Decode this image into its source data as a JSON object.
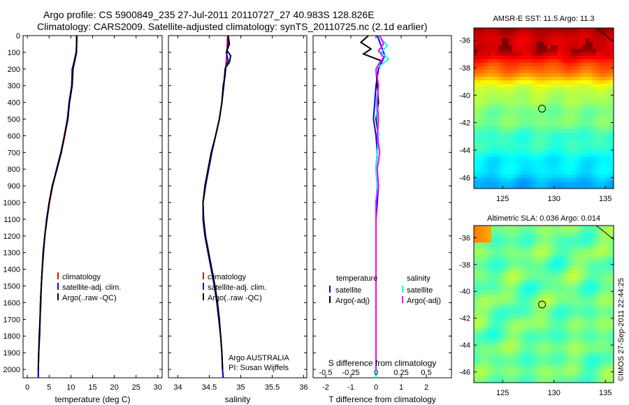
{
  "title": {
    "line1": "Argo profile: CS 5900849_235 27-Jul-2011 20110727_27 40.983S 128.826E",
    "line2": "Climatology: CARS2009. Satellite-adjusted climatology: synTS_20110725.nc (2.1d earlier)"
  },
  "colors": {
    "climatology": "#ff0000",
    "satellite": "#0000ff",
    "argo": "#000000",
    "salinity_satellite": "#00ffff",
    "salinity_argo": "#ff00ff"
  },
  "chart_data": [
    {
      "type": "line",
      "id": "temperature",
      "xlabel": "temperature (deg C)",
      "ylim": [
        2050,
        0
      ],
      "xlim": [
        -1,
        31
      ],
      "xticks": [
        "0",
        "5",
        "10",
        "15",
        "20",
        "25",
        "30"
      ],
      "yticks": [
        "0",
        "100",
        "200",
        "300",
        "400",
        "500",
        "600",
        "700",
        "800",
        "900",
        "1000",
        "1100",
        "1200",
        "1300",
        "1400",
        "1500",
        "1600",
        "1700",
        "1800",
        "1900",
        "2000"
      ],
      "legend": [
        "climatology",
        "satellite-adj. clim.",
        "Argo(..raw -QC)"
      ],
      "series": [
        {
          "name": "climatology",
          "color": "#ff0000",
          "points": [
            [
              11.4,
              0
            ],
            [
              11.3,
              100
            ],
            [
              10.8,
              160
            ],
            [
              10.4,
              200
            ],
            [
              10.2,
              300
            ],
            [
              9.6,
              400
            ],
            [
              9.3,
              500
            ],
            [
              8.6,
              600
            ],
            [
              7.8,
              700
            ],
            [
              6.8,
              800
            ],
            [
              5.8,
              900
            ],
            [
              5.1,
              1000
            ],
            [
              4.5,
              1100
            ],
            [
              4.0,
              1200
            ],
            [
              3.7,
              1300
            ],
            [
              3.4,
              1400
            ],
            [
              3.2,
              1500
            ],
            [
              3.1,
              1600
            ],
            [
              2.9,
              1700
            ],
            [
              2.8,
              1800
            ],
            [
              2.6,
              1900
            ],
            [
              2.5,
              2000
            ],
            [
              2.5,
              2050
            ]
          ]
        },
        {
          "name": "satellite-adj. clim.",
          "color": "#0000ff",
          "points": [
            [
              11.4,
              0
            ],
            [
              11.2,
              100
            ],
            [
              10.7,
              160
            ],
            [
              10.3,
              200
            ],
            [
              10.2,
              300
            ],
            [
              9.6,
              400
            ],
            [
              9.2,
              500
            ],
            [
              8.5,
              600
            ],
            [
              7.7,
              700
            ],
            [
              6.7,
              800
            ],
            [
              5.8,
              900
            ],
            [
              5.0,
              1000
            ],
            [
              4.4,
              1100
            ],
            [
              4.0,
              1200
            ],
            [
              3.6,
              1300
            ],
            [
              3.4,
              1400
            ],
            [
              3.2,
              1500
            ],
            [
              3.0,
              1600
            ],
            [
              2.9,
              1700
            ],
            [
              2.7,
              1800
            ],
            [
              2.6,
              1900
            ],
            [
              2.5,
              2000
            ],
            [
              2.5,
              2050
            ]
          ]
        },
        {
          "name": "Argo(..raw -QC)",
          "color": "#000000",
          "points": [
            [
              11.3,
              0
            ],
            [
              11.3,
              100
            ],
            [
              10.9,
              150
            ],
            [
              10.5,
              200
            ],
            [
              10.3,
              300
            ],
            [
              9.7,
              400
            ],
            [
              9.3,
              500
            ],
            [
              8.5,
              600
            ],
            [
              7.8,
              700
            ],
            [
              6.8,
              800
            ],
            [
              5.7,
              900
            ],
            [
              5.0,
              1000
            ],
            [
              4.5,
              1100
            ],
            [
              4.0,
              1200
            ],
            [
              3.7,
              1300
            ],
            [
              3.4,
              1400
            ],
            [
              3.2,
              1500
            ],
            [
              3.0,
              1600
            ],
            [
              2.9,
              1700
            ],
            [
              2.8,
              1800
            ],
            [
              2.6,
              1900
            ],
            [
              2.5,
              2000
            ]
          ]
        }
      ]
    },
    {
      "type": "line",
      "id": "salinity",
      "xlabel": "salinity",
      "ylim": [
        2050,
        0
      ],
      "xlim": [
        33.85,
        36.05
      ],
      "xticks": [
        "34",
        "34.5",
        "35",
        "35.5",
        "36"
      ],
      "legend": [
        "climatology",
        "satellite-adj. clim.",
        "Argo(..raw -QC)"
      ],
      "annotation": [
        "Argo AUSTRALIA",
        "PI: Susan Wijffels"
      ],
      "series": [
        {
          "name": "climatology",
          "color": "#ff0000",
          "points": [
            [
              34.79,
              0
            ],
            [
              34.78,
              100
            ],
            [
              34.76,
              200
            ],
            [
              34.73,
              300
            ],
            [
              34.7,
              400
            ],
            [
              34.66,
              500
            ],
            [
              34.6,
              600
            ],
            [
              34.54,
              700
            ],
            [
              34.49,
              800
            ],
            [
              34.44,
              900
            ],
            [
              34.4,
              1000
            ],
            [
              34.4,
              1100
            ],
            [
              34.43,
              1200
            ],
            [
              34.48,
              1300
            ],
            [
              34.53,
              1400
            ],
            [
              34.58,
              1500
            ],
            [
              34.62,
              1600
            ],
            [
              34.65,
              1700
            ],
            [
              34.68,
              1800
            ],
            [
              34.7,
              1900
            ],
            [
              34.71,
              2000
            ],
            [
              34.72,
              2050
            ]
          ]
        },
        {
          "name": "satellite-adj. clim.",
          "color": "#0000ff",
          "points": [
            [
              34.8,
              0
            ],
            [
              34.8,
              60
            ],
            [
              34.77,
              100
            ],
            [
              34.8,
              150
            ],
            [
              34.75,
              200
            ],
            [
              34.73,
              300
            ],
            [
              34.7,
              400
            ],
            [
              34.66,
              500
            ],
            [
              34.6,
              600
            ],
            [
              34.54,
              700
            ],
            [
              34.49,
              800
            ],
            [
              34.44,
              900
            ],
            [
              34.4,
              1000
            ],
            [
              34.4,
              1100
            ],
            [
              34.43,
              1200
            ],
            [
              34.48,
              1300
            ],
            [
              34.53,
              1400
            ],
            [
              34.58,
              1500
            ],
            [
              34.62,
              1600
            ],
            [
              34.65,
              1700
            ],
            [
              34.68,
              1800
            ],
            [
              34.7,
              1900
            ],
            [
              34.71,
              2000
            ],
            [
              34.72,
              2050
            ]
          ]
        },
        {
          "name": "Argo(..raw -QC)",
          "color": "#000000",
          "points": [
            [
              34.8,
              0
            ],
            [
              34.82,
              50
            ],
            [
              34.78,
              90
            ],
            [
              34.84,
              120
            ],
            [
              34.82,
              160
            ],
            [
              34.76,
              190
            ],
            [
              34.75,
              240
            ],
            [
              34.72,
              300
            ],
            [
              34.7,
              400
            ],
            [
              34.66,
              500
            ],
            [
              34.6,
              600
            ],
            [
              34.53,
              700
            ],
            [
              34.48,
              800
            ],
            [
              34.43,
              900
            ],
            [
              34.4,
              1000
            ],
            [
              34.41,
              1100
            ],
            [
              34.44,
              1200
            ],
            [
              34.49,
              1300
            ],
            [
              34.54,
              1400
            ],
            [
              34.59,
              1500
            ],
            [
              34.63,
              1600
            ],
            [
              34.66,
              1700
            ],
            [
              34.68,
              1800
            ],
            [
              34.7,
              1900
            ],
            [
              34.71,
              2000
            ]
          ]
        }
      ]
    },
    {
      "type": "line",
      "id": "difference",
      "xlabel": "T difference from climatology",
      "top_xlabel": "S difference from climatology",
      "ylim": [
        2050,
        0
      ],
      "xlim": [
        -2.5,
        3.0
      ],
      "xticks": [
        "-2",
        "-1",
        "0",
        "1",
        "2"
      ],
      "top_xticks": [
        "-0.5",
        "-0.25",
        "0",
        "0.25",
        "0.5"
      ],
      "legend_temperature_title": "temperature",
      "legend_salinity_title": "salinity",
      "legend_temperature": [
        "satellite",
        "Argo(-adj)"
      ],
      "legend_salinity": [
        "satellite",
        "Argo(-adj)"
      ],
      "series": [
        {
          "name": "T satellite",
          "color": "#0000ff",
          "points": [
            [
              0.05,
              0
            ],
            [
              0.2,
              60
            ],
            [
              0.35,
              120
            ],
            [
              0.1,
              200
            ],
            [
              0.0,
              300
            ],
            [
              -0.05,
              400
            ],
            [
              -0.1,
              500
            ],
            [
              0.0,
              600
            ],
            [
              0.05,
              700
            ],
            [
              0.0,
              800
            ],
            [
              0.1,
              900
            ],
            [
              0.05,
              1000
            ],
            [
              0.0,
              1100
            ],
            [
              0.0,
              1300
            ],
            [
              0.0,
              1600
            ],
            [
              0.0,
              2000
            ],
            [
              0.0,
              2050
            ]
          ]
        },
        {
          "name": "T Argo(-adj)",
          "color": "#000000",
          "points": [
            [
              -0.3,
              0
            ],
            [
              -0.6,
              40
            ],
            [
              -0.2,
              80
            ],
            [
              -0.5,
              110
            ],
            [
              0.2,
              150
            ],
            [
              0.0,
              200
            ],
            [
              0.05,
              300
            ],
            [
              0.1,
              400
            ],
            [
              0.0,
              500
            ],
            [
              0.1,
              600
            ],
            [
              0.05,
              700
            ],
            [
              0.0,
              800
            ],
            [
              0.05,
              900
            ],
            [
              0.0,
              1000
            ],
            [
              0.0,
              1200
            ],
            [
              0.0,
              1500
            ],
            [
              0.0,
              2000
            ]
          ]
        },
        {
          "name": "S satellite",
          "color": "#00ffff",
          "points": [
            [
              0.1,
              0
            ],
            [
              0.45,
              60
            ],
            [
              0.2,
              100
            ],
            [
              0.5,
              140
            ],
            [
              0.0,
              200
            ],
            [
              0.1,
              300
            ],
            [
              0.0,
              400
            ],
            [
              0.05,
              500
            ],
            [
              0.1,
              600
            ],
            [
              0.05,
              700
            ],
            [
              0.0,
              800
            ],
            [
              0.05,
              900
            ],
            [
              0.0,
              1000
            ],
            [
              0.0,
              1300
            ],
            [
              0.0,
              1600
            ],
            [
              0.0,
              2000
            ],
            [
              0.0,
              2050
            ]
          ]
        },
        {
          "name": "S Argo(-adj)",
          "color": "#ff00ff",
          "points": [
            [
              0.15,
              0
            ],
            [
              0.3,
              50
            ],
            [
              0.1,
              90
            ],
            [
              0.3,
              130
            ],
            [
              0.0,
              200
            ],
            [
              0.1,
              300
            ],
            [
              0.05,
              400
            ],
            [
              0.1,
              500
            ],
            [
              0.05,
              600
            ],
            [
              0.15,
              700
            ],
            [
              0.05,
              800
            ],
            [
              0.1,
              900
            ],
            [
              0.0,
              1000
            ],
            [
              0.0,
              1200
            ],
            [
              0.0,
              1500
            ],
            [
              0.0,
              2000
            ]
          ]
        }
      ]
    },
    {
      "type": "heatmap",
      "id": "sst-map",
      "title": "AMSR-E SST: 11.5 Argo: 11.3",
      "xlim": [
        122.2,
        135.8
      ],
      "ylim": [
        -46.8,
        -35.1
      ],
      "xticks": [
        "125",
        "130",
        "135"
      ],
      "yticks": [
        "-36",
        "-38",
        "-40",
        "-42",
        "-44",
        "-46"
      ],
      "marker": {
        "lon": 128.83,
        "lat": -40.98
      }
    },
    {
      "type": "heatmap",
      "id": "sla-map",
      "title": "Altimetric SLA: 0.036 Argo: 0.014",
      "xlim": [
        122.2,
        135.8
      ],
      "ylim": [
        -46.8,
        -35.1
      ],
      "xticks": [
        "125",
        "130",
        "135"
      ],
      "yticks": [
        "-36",
        "-38",
        "-40",
        "-42",
        "-44",
        "-46"
      ],
      "marker": {
        "lon": 128.83,
        "lat": -40.98
      }
    }
  ],
  "footer": "©IMOS 27-Sep-2011 22:44:25"
}
